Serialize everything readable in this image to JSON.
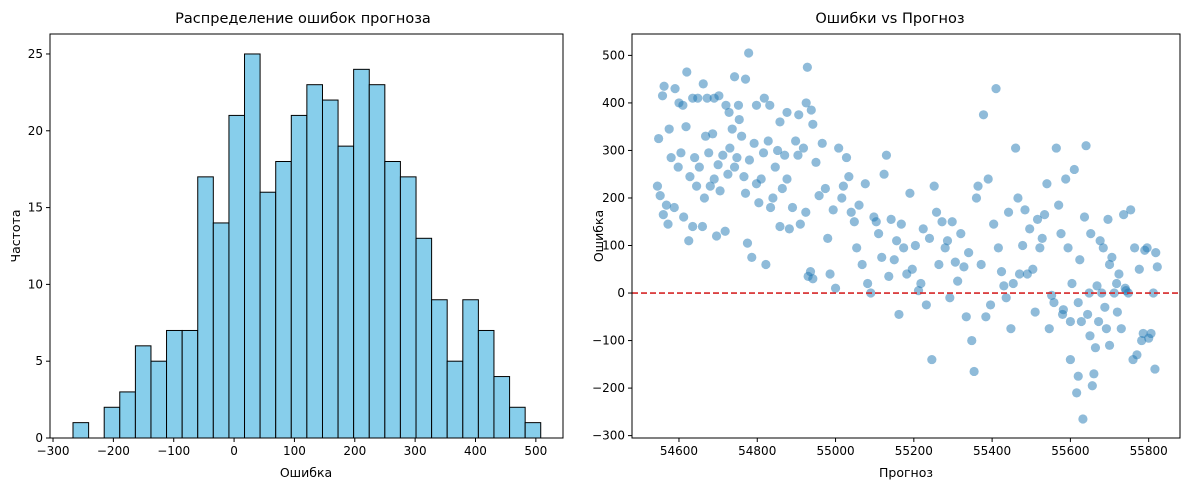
{
  "chart_data": [
    {
      "type": "bar",
      "title": "Распределение ошибок прогноза",
      "xlabel": "Ошибка",
      "ylabel": "Частота",
      "xlim": [
        -305,
        545
      ],
      "ylim": [
        0,
        26.3
      ],
      "xticks": [
        -300,
        -200,
        -100,
        0,
        100,
        200,
        300,
        400,
        500
      ],
      "xtick_labels": [
        "−300",
        "−200",
        "−100",
        "0",
        "100",
        "200",
        "300",
        "400",
        "500"
      ],
      "yticks": [
        0,
        5,
        10,
        15,
        20,
        25
      ],
      "bin_edges": [
        -266.9,
        -241.0,
        -215.2,
        -189.4,
        -163.5,
        -137.7,
        -111.9,
        -86.0,
        -60.2,
        -34.4,
        -8.5,
        17.3,
        43.1,
        69.0,
        94.8,
        120.6,
        146.5,
        172.3,
        198.1,
        224.0,
        249.8,
        275.6,
        301.5,
        327.3,
        353.1,
        379.0,
        404.8,
        430.6,
        456.5,
        482.3,
        508.1
      ],
      "counts": [
        1,
        0,
        2,
        3,
        6,
        5,
        7,
        7,
        17,
        14,
        21,
        25,
        16,
        18,
        21,
        23,
        22,
        19,
        24,
        23,
        18,
        17,
        13,
        9,
        5,
        9,
        7,
        4,
        2,
        1
      ],
      "bar_color": "#87ceeb",
      "edge_color": "#000000"
    },
    {
      "type": "scatter",
      "title": "Ошибки vs Прогноз",
      "xlabel": "Прогноз",
      "ylabel": "Ошибка",
      "xlim": [
        54480,
        55880
      ],
      "ylim": [
        -305,
        545
      ],
      "xticks": [
        54600,
        54800,
        55000,
        55200,
        55400,
        55600,
        55800
      ],
      "yticks": [
        -300,
        -200,
        -100,
        0,
        100,
        200,
        300,
        400,
        500
      ],
      "ytick_labels": [
        "−300",
        "−200",
        "−100",
        "0",
        "100",
        "200",
        "300",
        "400",
        "500"
      ],
      "point_color": "#1f77b4",
      "reference_line": {
        "y": 0,
        "color": "#d62728",
        "style": "dashed"
      },
      "points": [
        [
          54548,
          325
        ],
        [
          54558,
          415
        ],
        [
          54562,
          435
        ],
        [
          54575,
          345
        ],
        [
          54590,
          430
        ],
        [
          54600,
          400
        ],
        [
          54610,
          395
        ],
        [
          54620,
          465
        ],
        [
          54635,
          410
        ],
        [
          54648,
          410
        ],
        [
          54662,
          440
        ],
        [
          54672,
          410
        ],
        [
          54690,
          410
        ],
        [
          54702,
          415
        ],
        [
          54720,
          395
        ],
        [
          54728,
          380
        ],
        [
          54742,
          455
        ],
        [
          54752,
          395
        ],
        [
          54770,
          450
        ],
        [
          54778,
          505
        ],
        [
          54798,
          395
        ],
        [
          54818,
          410
        ],
        [
          54832,
          395
        ],
        [
          54858,
          360
        ],
        [
          54876,
          380
        ],
        [
          54906,
          375
        ],
        [
          54925,
          400
        ],
        [
          54928,
          475
        ],
        [
          54938,
          385
        ],
        [
          54942,
          355
        ],
        [
          54545,
          225
        ],
        [
          54552,
          205
        ],
        [
          54560,
          165
        ],
        [
          54568,
          185
        ],
        [
          54572,
          145
        ],
        [
          54580,
          285
        ],
        [
          54588,
          180
        ],
        [
          54598,
          265
        ],
        [
          54605,
          295
        ],
        [
          54612,
          160
        ],
        [
          54618,
          350
        ],
        [
          54625,
          110
        ],
        [
          54628,
          245
        ],
        [
          54635,
          140
        ],
        [
          54640,
          285
        ],
        [
          54645,
          225
        ],
        [
          54652,
          265
        ],
        [
          54660,
          140
        ],
        [
          54665,
          200
        ],
        [
          54668,
          330
        ],
        [
          54676,
          295
        ],
        [
          54680,
          225
        ],
        [
          54686,
          335
        ],
        [
          54690,
          240
        ],
        [
          54696,
          120
        ],
        [
          54700,
          270
        ],
        [
          54705,
          215
        ],
        [
          54712,
          290
        ],
        [
          54718,
          130
        ],
        [
          54725,
          250
        ],
        [
          54730,
          305
        ],
        [
          54736,
          345
        ],
        [
          54742,
          265
        ],
        [
          54748,
          285
        ],
        [
          54754,
          365
        ],
        [
          54760,
          330
        ],
        [
          54766,
          245
        ],
        [
          54770,
          210
        ],
        [
          54775,
          105
        ],
        [
          54780,
          280
        ],
        [
          54786,
          75
        ],
        [
          54792,
          315
        ],
        [
          54798,
          230
        ],
        [
          54804,
          190
        ],
        [
          54810,
          240
        ],
        [
          54816,
          295
        ],
        [
          54822,
          60
        ],
        [
          54828,
          320
        ],
        [
          54834,
          180
        ],
        [
          54840,
          200
        ],
        [
          54846,
          265
        ],
        [
          54852,
          300
        ],
        [
          54858,
          140
        ],
        [
          54864,
          220
        ],
        [
          54870,
          290
        ],
        [
          54876,
          240
        ],
        [
          54882,
          135
        ],
        [
          54890,
          180
        ],
        [
          54898,
          320
        ],
        [
          54904,
          290
        ],
        [
          54910,
          145
        ],
        [
          54918,
          305
        ],
        [
          54924,
          170
        ],
        [
          54930,
          35
        ],
        [
          54936,
          45
        ],
        [
          54942,
          30
        ],
        [
          54950,
          275
        ],
        [
          54958,
          205
        ],
        [
          54966,
          315
        ],
        [
          54974,
          220
        ],
        [
          54980,
          115
        ],
        [
          54986,
          40
        ],
        [
          54994,
          175
        ],
        [
          55000,
          10
        ],
        [
          55008,
          305
        ],
        [
          55016,
          200
        ],
        [
          55020,
          225
        ],
        [
          55028,
          285
        ],
        [
          55034,
          245
        ],
        [
          55040,
          170
        ],
        [
          55048,
          150
        ],
        [
          55054,
          95
        ],
        [
          55060,
          185
        ],
        [
          55068,
          60
        ],
        [
          55076,
          230
        ],
        [
          55082,
          20
        ],
        [
          55090,
          0
        ],
        [
          55098,
          160
        ],
        [
          55104,
          150
        ],
        [
          55110,
          125
        ],
        [
          55118,
          75
        ],
        [
          55124,
          250
        ],
        [
          55130,
          290
        ],
        [
          55136,
          35
        ],
        [
          55142,
          155
        ],
        [
          55150,
          70
        ],
        [
          55156,
          110
        ],
        [
          55162,
          -45
        ],
        [
          55168,
          145
        ],
        [
          55174,
          95
        ],
        [
          55182,
          40
        ],
        [
          55190,
          210
        ],
        [
          55196,
          50
        ],
        [
          55204,
          100
        ],
        [
          55212,
          5
        ],
        [
          55218,
          20
        ],
        [
          55224,
          135
        ],
        [
          55232,
          -25
        ],
        [
          55240,
          115
        ],
        [
          55246,
          -140
        ],
        [
          55252,
          225
        ],
        [
          55258,
          170
        ],
        [
          55264,
          60
        ],
        [
          55272,
          150
        ],
        [
          55280,
          95
        ],
        [
          55286,
          110
        ],
        [
          55292,
          -10
        ],
        [
          55298,
          150
        ],
        [
          55306,
          65
        ],
        [
          55312,
          25
        ],
        [
          55320,
          125
        ],
        [
          55328,
          55
        ],
        [
          55334,
          -50
        ],
        [
          55340,
          85
        ],
        [
          55348,
          -100
        ],
        [
          55354,
          -165
        ],
        [
          55360,
          200
        ],
        [
          55364,
          225
        ],
        [
          55372,
          60
        ],
        [
          55378,
          375
        ],
        [
          55384,
          -50
        ],
        [
          55390,
          240
        ],
        [
          55396,
          -25
        ],
        [
          55404,
          145
        ],
        [
          55410,
          430
        ],
        [
          55416,
          95
        ],
        [
          55424,
          45
        ],
        [
          55430,
          15
        ],
        [
          55436,
          -10
        ],
        [
          55442,
          170
        ],
        [
          55448,
          -75
        ],
        [
          55454,
          20
        ],
        [
          55460,
          305
        ],
        [
          55466,
          200
        ],
        [
          55470,
          40
        ],
        [
          55478,
          100
        ],
        [
          55484,
          175
        ],
        [
          55490,
          40
        ],
        [
          55496,
          135
        ],
        [
          55504,
          50
        ],
        [
          55510,
          -40
        ],
        [
          55516,
          155
        ],
        [
          55522,
          95
        ],
        [
          55528,
          115
        ],
        [
          55534,
          165
        ],
        [
          55540,
          230
        ],
        [
          55546,
          -75
        ],
        [
          55552,
          -5
        ],
        [
          55558,
          -20
        ],
        [
          55564,
          305
        ],
        [
          55570,
          185
        ],
        [
          55576,
          125
        ],
        [
          55582,
          -35
        ],
        [
          55588,
          240
        ],
        [
          55594,
          95
        ],
        [
          55600,
          -140
        ],
        [
          55604,
          20
        ],
        [
          55610,
          260
        ],
        [
          55616,
          -210
        ],
        [
          55620,
          -175
        ],
        [
          55624,
          70
        ],
        [
          55628,
          -60
        ],
        [
          55632,
          -265
        ],
        [
          55636,
          160
        ],
        [
          55640,
          310
        ],
        [
          55644,
          -45
        ],
        [
          55648,
          0
        ],
        [
          55652,
          125
        ],
        [
          55656,
          -195
        ],
        [
          55660,
          -170
        ],
        [
          55664,
          -115
        ],
        [
          55668,
          15
        ],
        [
          55672,
          -60
        ],
        [
          55676,
          110
        ],
        [
          55680,
          0
        ],
        [
          55684,
          95
        ],
        [
          55688,
          -30
        ],
        [
          55692,
          -75
        ],
        [
          55696,
          155
        ],
        [
          55700,
          -110
        ],
        [
          55706,
          75
        ],
        [
          55712,
          0
        ],
        [
          55718,
          20
        ],
        [
          55724,
          40
        ],
        [
          55730,
          -75
        ],
        [
          55736,
          165
        ],
        [
          55742,
          5
        ],
        [
          55748,
          0
        ],
        [
          55754,
          175
        ],
        [
          55760,
          -140
        ],
        [
          55764,
          95
        ],
        [
          55770,
          -130
        ],
        [
          55776,
          50
        ],
        [
          55782,
          -100
        ],
        [
          55786,
          -85
        ],
        [
          55790,
          90
        ],
        [
          55796,
          95
        ],
        [
          55800,
          -95
        ],
        [
          55806,
          -85
        ],
        [
          55812,
          0
        ],
        [
          55816,
          -160
        ],
        [
          55818,
          85
        ],
        [
          55822,
          55
        ],
        [
          55580,
          -45
        ],
        [
          55600,
          -60
        ],
        [
          55620,
          -20
        ],
        [
          55650,
          -90
        ],
        [
          55700,
          60
        ],
        [
          55720,
          -40
        ],
        [
          55740,
          10
        ]
      ]
    }
  ]
}
